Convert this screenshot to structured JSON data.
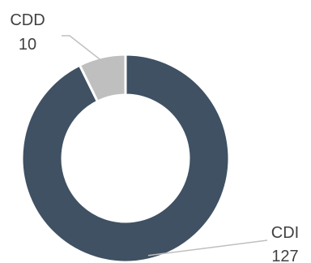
{
  "chart_data": {
    "type": "pie",
    "variant": "donut",
    "title": "",
    "legend": "none",
    "slices": [
      {
        "label": "CDI",
        "value": 127,
        "color": "#3f5163"
      },
      {
        "label": "CDD",
        "value": 10,
        "color": "#bfbfbf"
      }
    ]
  },
  "colors": {
    "separator": "#ffffff",
    "leader_line": "#bfbfbf",
    "label_text": "#404040"
  }
}
